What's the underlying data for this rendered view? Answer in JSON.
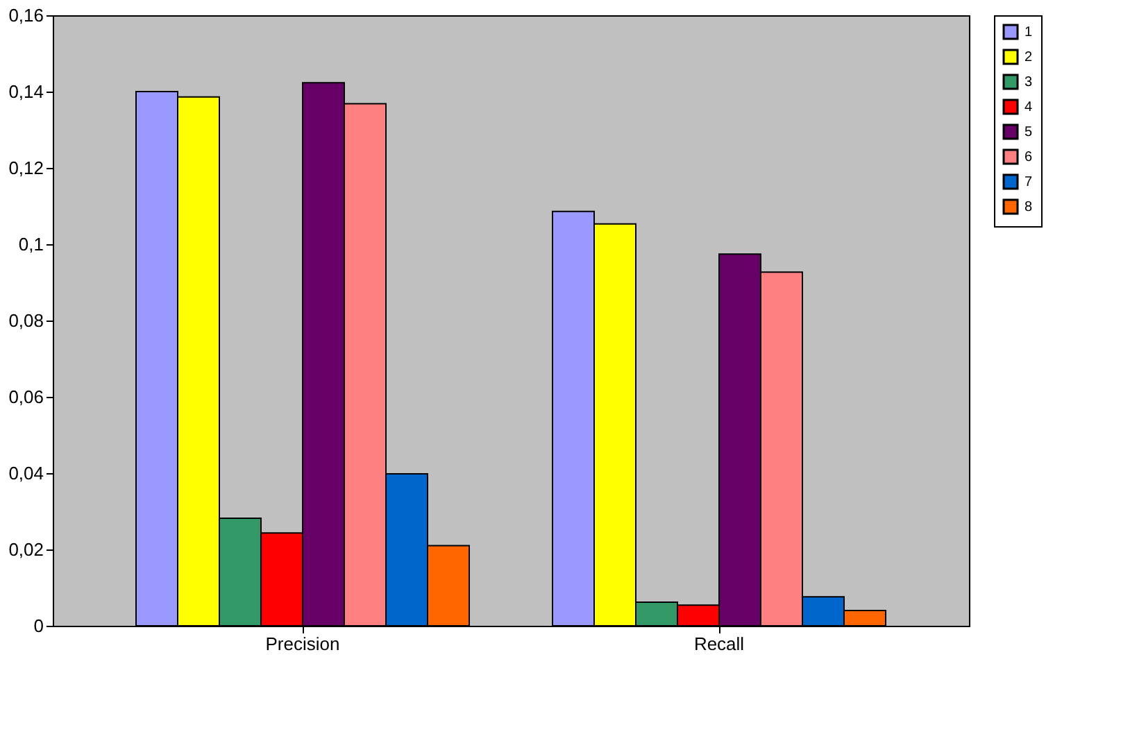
{
  "chart_data": {
    "type": "bar",
    "categories": [
      "Precision",
      "Recall"
    ],
    "series": [
      {
        "name": "1",
        "color": "#9999ff",
        "values": [
          0.14,
          0.1086
        ]
      },
      {
        "name": "2",
        "color": "#ffff00",
        "values": [
          0.1386,
          0.1053
        ]
      },
      {
        "name": "3",
        "color": "#339966",
        "values": [
          0.0282,
          0.0062
        ]
      },
      {
        "name": "4",
        "color": "#ff0000",
        "values": [
          0.0243,
          0.0054
        ]
      },
      {
        "name": "5",
        "color": "#660066",
        "values": [
          0.1423,
          0.0974
        ]
      },
      {
        "name": "6",
        "color": "#ff8080",
        "values": [
          0.1368,
          0.0927
        ]
      },
      {
        "name": "7",
        "color": "#0066cc",
        "values": [
          0.0398,
          0.0076
        ]
      },
      {
        "name": "8",
        "color": "#ff6600",
        "values": [
          0.021,
          0.004
        ]
      }
    ],
    "ylim": [
      0,
      0.16
    ],
    "yticks": [
      0,
      {
        "value": 0.02,
        "label": "0,02"
      },
      {
        "value": 0.04,
        "label": "0,04"
      },
      {
        "value": 0.06,
        "label": "0,06"
      },
      {
        "value": 0.08,
        "label": "0,08"
      },
      {
        "value": 0.1,
        "label": "0,1"
      },
      {
        "value": 0.12,
        "label": "0,12"
      },
      {
        "value": 0.14,
        "label": "0,14"
      },
      {
        "value": 0.16,
        "label": "0,16"
      }
    ],
    "grid": false,
    "legend": "right"
  }
}
